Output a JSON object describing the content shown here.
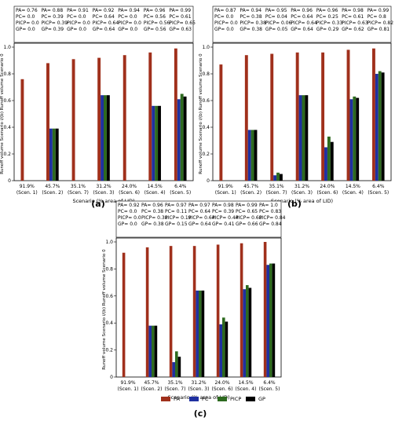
{
  "colors": {
    "PA": "#a0301c",
    "PC": "#1f30a0",
    "PICP": "#2d6a1f",
    "GP": "#000000"
  },
  "chart_data": [
    {
      "type": "bar",
      "panel_label": "(a)",
      "xlabel": "Scenario (% area of LID)",
      "ylabel": "Runoff volume Scenario i/(b) Runoff volume Scenario 0",
      "ylim": [
        0,
        1.0
      ],
      "yticks": [
        0,
        0.2,
        0.4,
        0.6,
        0.8,
        1.0
      ],
      "ytick_labels": [
        "0",
        "0.2",
        "0.4",
        "0.6",
        "0.8",
        "1.0"
      ],
      "categories": [
        "91.9%\n(Scen. 1)",
        "45.7%\n(Scen. 2)",
        "35.1%\n(Scen. 7)",
        "31.2%\n(Scen. 3)",
        "24.0%\n(Scen. 6)",
        "14.5%\n(Scen. 4)",
        "6.4%\n(Scen. 5)"
      ],
      "series": [
        {
          "name": "PA",
          "values": [
            0.76,
            0.88,
            0.91,
            0.92,
            0.94,
            0.96,
            0.99
          ]
        },
        {
          "name": "PC",
          "values": [
            0,
            0.39,
            0,
            0.64,
            0,
            0.56,
            0.61
          ]
        },
        {
          "name": "PICP",
          "values": [
            0,
            0.39,
            0,
            0.64,
            0,
            0.56,
            0.65
          ]
        },
        {
          "name": "GP",
          "values": [
            0,
            0.39,
            0,
            0.64,
            0,
            0.56,
            0.63
          ]
        }
      ],
      "annotations": [
        [
          "PA= 0.76",
          "PC= 0.0",
          "PICP= 0.0",
          "GP= 0.0"
        ],
        [
          "PA= 0.88",
          "PC= 0.39",
          "PICP= 0.39",
          "GP= 0.39"
        ],
        [
          "PA= 0.91",
          "PC= 0.0",
          "PICP= 0.0",
          "GP= 0.0"
        ],
        [
          "PA= 0.92",
          "PC= 0.64",
          "PICP= 0.64",
          "GP= 0.64"
        ],
        [
          "PA= 0.94",
          "PC= 0.0",
          "PICP= 0.0",
          "GP= 0.0"
        ],
        [
          "PA= 0.96",
          "PC= 0.56",
          "PICP= 0.56",
          "GP= 0.56"
        ],
        [
          "PA= 0.99",
          "PC= 0.61",
          "PICP= 0.65",
          "GP= 0.63"
        ]
      ]
    },
    {
      "type": "bar",
      "panel_label": "(b)",
      "xlabel": "Scenario (% area of LID)",
      "ylabel": "Runoff volume Scenario i/(b) Runoff volume Scenario 0",
      "ylim": [
        0,
        1.0
      ],
      "yticks": [
        0,
        0.2,
        0.4,
        0.6,
        0.8,
        1.0
      ],
      "ytick_labels": [
        "0",
        "0.2",
        "0.4",
        "0.6",
        "0.8",
        "1.0"
      ],
      "categories": [
        "91.9%\n(Scen. 1)",
        "45.7%\n(Scen. 2)",
        "35.1%\n(Scen. 7)",
        "31.2%\n(Scen. 3)",
        "24.0%\n(Scen. 6)",
        "14.5%\n(Scen. 4)",
        "6.4%\n(Scen. 5)"
      ],
      "series": [
        {
          "name": "PA",
          "values": [
            0.87,
            0.94,
            0.95,
            0.96,
            0.96,
            0.98,
            0.99
          ]
        },
        {
          "name": "PC",
          "values": [
            0,
            0.38,
            0.04,
            0.64,
            0.25,
            0.61,
            0.8
          ]
        },
        {
          "name": "PICP",
          "values": [
            0,
            0.38,
            0.06,
            0.64,
            0.33,
            0.63,
            0.82
          ]
        },
        {
          "name": "GP",
          "values": [
            0,
            0.38,
            0.05,
            0.64,
            0.29,
            0.62,
            0.81
          ]
        }
      ],
      "annotations": [
        [
          "PA= 0.87",
          "PC= 0.0",
          "PICP= 0.0",
          "GP= 0.0"
        ],
        [
          "PA= 0.94",
          "PC= 0.38",
          "PICP= 0.38",
          "GP= 0.38"
        ],
        [
          "PA= 0.95",
          "PC= 0.04",
          "PICP= 0.06",
          "GP= 0.05"
        ],
        [
          "PA= 0.96",
          "PC= 0.64",
          "PICP= 0.64",
          "GP= 0.64"
        ],
        [
          "PA= 0.96",
          "PC= 0.25",
          "PICP= 0.33",
          "GP= 0.29"
        ],
        [
          "PA= 0.98",
          "PC= 0.61",
          "PICP= 0.63",
          "GP= 0.62"
        ],
        [
          "PA= 0.99",
          "PC= 0.8",
          "PICP= 0.82",
          "GP= 0.81"
        ]
      ]
    },
    {
      "type": "bar",
      "panel_label": "(c)",
      "xlabel": "Scenario (% area of LID)",
      "ylabel": "Runoff volume Scenario i/(b) Runoff volume Scenario 0",
      "ylim": [
        0,
        1.0
      ],
      "yticks": [
        0,
        0.2,
        0.4,
        0.6,
        0.8,
        1.0
      ],
      "ytick_labels": [
        "0",
        "0.2",
        "0.4",
        "0.6",
        "0.8",
        "1.0"
      ],
      "categories": [
        "91.9%\n(Scen. 1)",
        "45.7%\n(Scen. 2)",
        "35.1%\n(Scen. 7)",
        "31.2%\n(Scen. 3)",
        "24.0%\n(Scen. 6)",
        "14.5%\n(Scen. 4)",
        "6.4%\n(Scen. 5)"
      ],
      "series": [
        {
          "name": "PA",
          "values": [
            0.92,
            0.96,
            0.97,
            0.97,
            0.98,
            0.99,
            1.0
          ]
        },
        {
          "name": "PC",
          "values": [
            0,
            0.38,
            0.11,
            0.64,
            0.39,
            0.65,
            0.83
          ]
        },
        {
          "name": "PICP",
          "values": [
            0,
            0.38,
            0.19,
            0.64,
            0.44,
            0.68,
            0.84
          ]
        },
        {
          "name": "GP",
          "values": [
            0,
            0.38,
            0.15,
            0.64,
            0.41,
            0.66,
            0.84
          ]
        }
      ],
      "annotations": [
        [
          "PA= 0.92",
          "PC= 0.0",
          "PICP= 0.0",
          "GP= 0.0"
        ],
        [
          "PA= 0.96",
          "PC= 0.38",
          "PICP= 0.38",
          "GP= 0.38"
        ],
        [
          "PA= 0.97",
          "PC= 0.11",
          "PICP= 0.19",
          "GP= 0.15"
        ],
        [
          "PA= 0.97",
          "PC= 0.64",
          "PICP= 0.64",
          "GP= 0.64"
        ],
        [
          "PA= 0.98",
          "PC= 0.39",
          "PICP= 0.44",
          "GP= 0.41"
        ],
        [
          "PA= 0.99",
          "PC= 0.65",
          "PICP= 0.68",
          "GP= 0.66"
        ],
        [
          "PA= 1.0",
          "PC= 0.83",
          "PICP= 0.84",
          "GP= 0.84"
        ]
      ],
      "legend": {
        "placement": "bottom-right",
        "entries": [
          "PA",
          "PC",
          "PICP",
          "GP"
        ]
      }
    }
  ]
}
